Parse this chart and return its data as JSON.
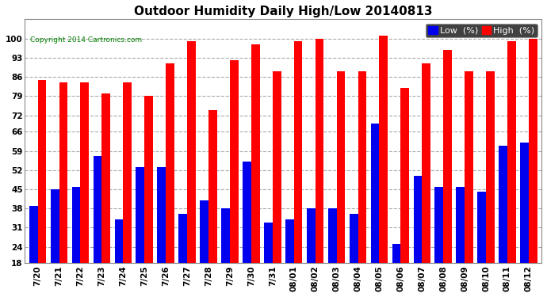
{
  "title": "Outdoor Humidity Daily High/Low 20140813",
  "copyright": "Copyright 2014 Cartronics.com",
  "dates": [
    "7/20",
    "7/21",
    "7/22",
    "7/23",
    "7/24",
    "7/25",
    "7/26",
    "7/27",
    "7/28",
    "7/29",
    "7/30",
    "7/31",
    "08/01",
    "08/02",
    "08/03",
    "08/04",
    "08/05",
    "08/06",
    "08/07",
    "08/08",
    "08/09",
    "08/10",
    "08/11",
    "08/12"
  ],
  "high": [
    85,
    84,
    84,
    80,
    84,
    79,
    91,
    99,
    74,
    92,
    98,
    88,
    99,
    100,
    88,
    88,
    101,
    82,
    91,
    96,
    88,
    88,
    99,
    100
  ],
  "low": [
    39,
    45,
    46,
    57,
    34,
    53,
    53,
    36,
    41,
    38,
    55,
    33,
    34,
    38,
    38,
    36,
    69,
    25,
    50,
    46,
    46,
    44,
    61,
    62
  ],
  "high_color": "#ff0000",
  "low_color": "#0000ee",
  "bg_color": "#ffffff",
  "grid_color": "#aaaaaa",
  "ylim_min": 18,
  "ylim_max": 107,
  "yticks": [
    18,
    24,
    31,
    38,
    45,
    52,
    59,
    66,
    72,
    79,
    86,
    93,
    100
  ],
  "bar_width": 0.4,
  "title_fontsize": 11,
  "axis_fontsize": 7.5,
  "legend_fontsize": 8
}
